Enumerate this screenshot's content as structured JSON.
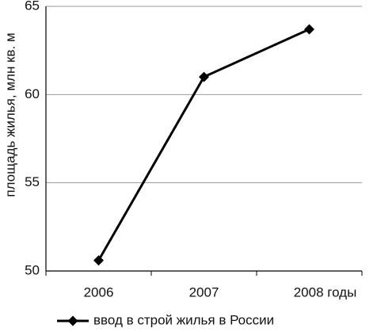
{
  "chart_data": {
    "type": "line",
    "y_label": "площадь жилья, млн кв. м",
    "categories": [
      "2006",
      "2007",
      "2008 годы"
    ],
    "series": [
      {
        "name": "ввод в строй жилья в России",
        "color": "#000000",
        "values": [
          50.6,
          61.0,
          63.7
        ]
      }
    ],
    "ylim": [
      50,
      65
    ],
    "yticks": [
      50,
      55,
      60,
      65
    ],
    "grid": true,
    "legend": "bottom"
  }
}
